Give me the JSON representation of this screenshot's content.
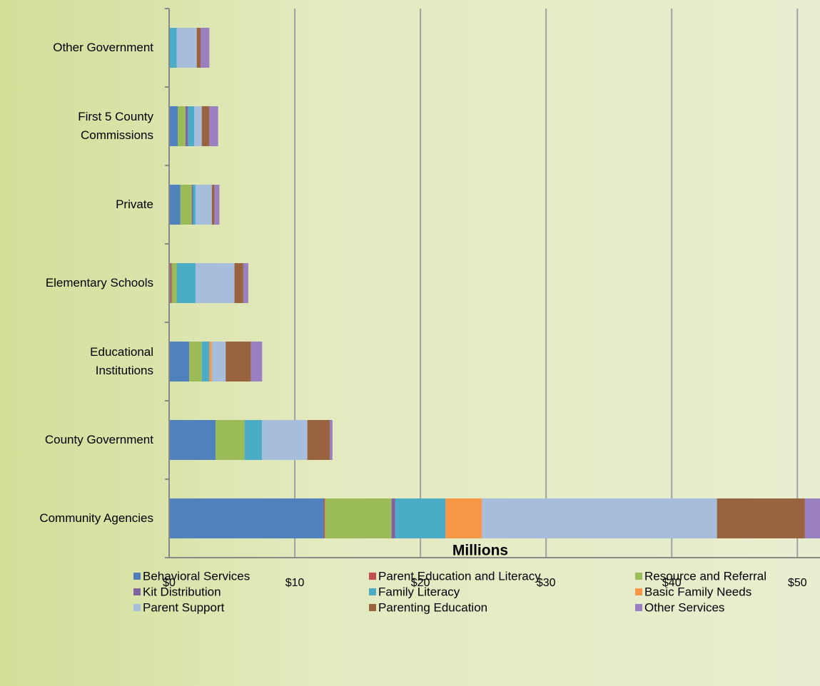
{
  "chart_data": {
    "type": "stacked-barh",
    "xlabel": "Millions",
    "categories": [
      "Other Government",
      "First 5 County\nCommissions",
      "Private",
      "Elementary Schools",
      "Educational\nInstitutions",
      "County Government",
      "Community Agencies"
    ],
    "series": [
      {
        "name": "Behavioral Services",
        "color": "#4f81bd",
        "values": [
          0,
          0.7,
          0.9,
          0.1,
          1.6,
          3.7,
          12.3
        ]
      },
      {
        "name": "Parent Education and Literacy",
        "color": "#c0504d",
        "values": [
          0,
          0,
          0,
          0.1,
          0,
          0,
          0.1
        ]
      },
      {
        "name": "Resource and Referral",
        "color": "#9bbb59",
        "values": [
          0,
          0.6,
          0.9,
          0.4,
          1.0,
          2.3,
          5.3
        ]
      },
      {
        "name": "Kit Distribution",
        "color": "#8064a2",
        "values": [
          0,
          0.2,
          0.1,
          0,
          0,
          0,
          0.3
        ]
      },
      {
        "name": "Family Literacy",
        "color": "#4bacc6",
        "values": [
          0.6,
          0.5,
          0.2,
          1.5,
          0.6,
          1.4,
          4.0
        ]
      },
      {
        "name": "Basic Family Needs",
        "color": "#f79646",
        "values": [
          0,
          0,
          0,
          0,
          0.2,
          0,
          2.9
        ]
      },
      {
        "name": "Parent Support",
        "color": "#a7bddc",
        "values": [
          1.6,
          0.6,
          1.3,
          3.1,
          1.1,
          3.6,
          18.7
        ]
      },
      {
        "name": "Parenting Education",
        "color": "#9a6340",
        "values": [
          0.3,
          0.6,
          0.2,
          0.7,
          2.0,
          1.8,
          7.0
        ]
      },
      {
        "name": "Other Services",
        "color": "#9a80c0",
        "values": [
          0.7,
          0.7,
          0.4,
          0.4,
          0.9,
          0.2,
          1.2
        ]
      }
    ],
    "xlim": [
      0,
      51.8
    ],
    "xticks": [
      {
        "value": 0,
        "label": "$0"
      },
      {
        "value": 10,
        "label": "$10"
      },
      {
        "value": 20,
        "label": "$20"
      },
      {
        "value": 30,
        "label": "$30"
      },
      {
        "value": 40,
        "label": "$40"
      },
      {
        "value": 50,
        "label": "$50"
      }
    ],
    "grid": true
  }
}
